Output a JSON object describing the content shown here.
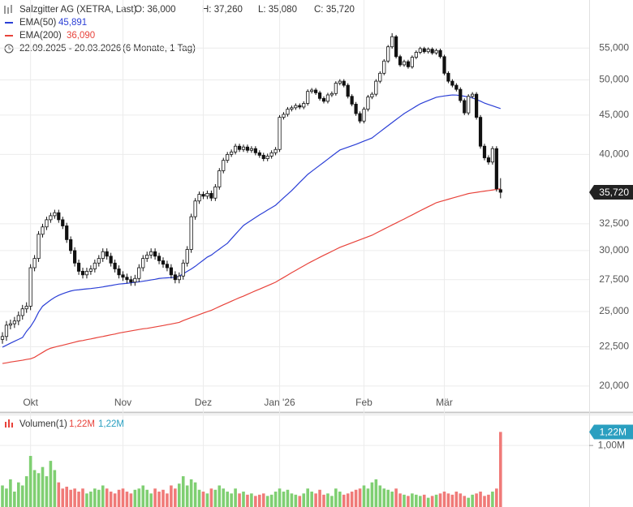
{
  "chart_data": {
    "type": "candlestick",
    "title": "Salzgitter AG (XETRA, Last)",
    "ohlc_labels": [
      "O: 36,000",
      "H: 37,260",
      "L: 35,080",
      "C: 35,720"
    ],
    "date_range": "22.09.2025 - 20.03.2026",
    "period": "(6 Monate, 1 Tag)",
    "categories": [
      null,
      null,
      null,
      null,
      null,
      null,
      null,
      "Okt",
      null,
      null,
      null,
      null,
      null,
      null,
      null,
      null,
      null,
      null,
      null,
      null,
      null,
      null,
      null,
      null,
      null,
      null,
      null,
      null,
      null,
      null,
      "Nov",
      null,
      null,
      null,
      null,
      null,
      null,
      null,
      null,
      null,
      null,
      null,
      null,
      null,
      null,
      null,
      null,
      null,
      null,
      null,
      "Dez",
      null,
      null,
      null,
      null,
      null,
      null,
      null,
      null,
      null,
      null,
      null,
      null,
      null,
      null,
      null,
      null,
      null,
      null,
      "Jan '26",
      null,
      null,
      null,
      null,
      null,
      null,
      null,
      null,
      null,
      null,
      null,
      null,
      null,
      null,
      null,
      null,
      null,
      null,
      null,
      null,
      "Feb",
      null,
      null,
      null,
      null,
      null,
      null,
      null,
      null,
      null,
      null,
      null,
      null,
      null,
      null,
      null,
      null,
      null,
      null,
      null,
      "Mär",
      null,
      null,
      null,
      null,
      null,
      null,
      null,
      null,
      null,
      null,
      null,
      null,
      null,
      null
    ],
    "open": [
      23000,
      23200,
      24000,
      24100,
      24300,
      24700,
      25200,
      25400,
      28500,
      29300,
      31500,
      32200,
      32900,
      33300,
      33600,
      32900,
      32300,
      31000,
      30000,
      28900,
      28200,
      27900,
      28200,
      28400,
      28900,
      29300,
      29900,
      29500,
      28900,
      28400,
      27900,
      27700,
      27500,
      27300,
      27600,
      28500,
      29300,
      29600,
      29900,
      29500,
      29100,
      28800,
      28500,
      27900,
      27500,
      27800,
      28900,
      30100,
      33200,
      34800,
      35500,
      35300,
      35600,
      35100,
      36300,
      38100,
      39300,
      40000,
      40300,
      41000,
      40600,
      40900,
      40500,
      40700,
      40200,
      39900,
      39500,
      39800,
      40200,
      40600,
      44700,
      45100,
      45800,
      46000,
      46300,
      46100,
      46600,
      48300,
      48500,
      48100,
      47300,
      46900,
      47800,
      48000,
      49500,
      49800,
      49200,
      47600,
      46500,
      45200,
      44200,
      45800,
      47500,
      47900,
      49800,
      51000,
      52900,
      55200,
      56900,
      53600,
      52300,
      52800,
      52000,
      53500,
      54300,
      54900,
      54400,
      54800,
      54200,
      54600,
      53600,
      51000,
      49800,
      49200,
      48600,
      47000,
      45300,
      47600,
      47900,
      44700,
      41000,
      39600,
      39100,
      40700,
      36000
    ],
    "high": [
      23500,
      24300,
      24400,
      24600,
      25000,
      25500,
      25700,
      28800,
      29600,
      31800,
      32500,
      33200,
      33600,
      33900,
      33900,
      33200,
      32600,
      31300,
      30300,
      29200,
      28500,
      28500,
      28700,
      29200,
      29600,
      30200,
      30200,
      29800,
      29200,
      28700,
      28200,
      28000,
      27800,
      27900,
      28800,
      29600,
      29900,
      30200,
      30200,
      29800,
      29400,
      29100,
      28800,
      28200,
      28100,
      29200,
      30400,
      33500,
      35100,
      35800,
      35800,
      35900,
      35900,
      36600,
      38400,
      39600,
      40300,
      40600,
      41300,
      41300,
      41200,
      41200,
      41000,
      41000,
      40500,
      40200,
      40100,
      40500,
      40900,
      45000,
      45400,
      46100,
      46300,
      46600,
      46600,
      46900,
      48600,
      48800,
      48800,
      48400,
      47600,
      48100,
      48300,
      49800,
      50100,
      50100,
      49500,
      47900,
      46800,
      45500,
      46100,
      47800,
      48200,
      50100,
      51300,
      53200,
      55500,
      57500,
      57200,
      53900,
      53100,
      53100,
      53800,
      54600,
      55200,
      55200,
      55100,
      55100,
      54900,
      54900,
      53900,
      51300,
      50100,
      49500,
      48900,
      47300,
      47900,
      48200,
      48200,
      45000,
      41300,
      39900,
      41000,
      41000,
      37260
    ],
    "low": [
      22700,
      22900,
      23700,
      23800,
      24000,
      24400,
      24900,
      25100,
      28200,
      29000,
      31200,
      31900,
      32600,
      33000,
      32600,
      32000,
      30700,
      29700,
      28600,
      27900,
      27600,
      27600,
      27900,
      28100,
      28600,
      29000,
      29200,
      28600,
      28100,
      27600,
      27400,
      27200,
      27000,
      27000,
      27300,
      28200,
      29000,
      29300,
      29200,
      28800,
      28500,
      28200,
      27600,
      27200,
      27200,
      27500,
      28600,
      29800,
      32900,
      34500,
      35000,
      35000,
      34800,
      34800,
      36000,
      37800,
      39000,
      39700,
      40000,
      40300,
      40300,
      40200,
      40200,
      39900,
      39600,
      39200,
      39200,
      39500,
      39900,
      40300,
      44400,
      44800,
      45500,
      45700,
      45800,
      45800,
      46300,
      48000,
      47800,
      47000,
      46600,
      46600,
      47500,
      47700,
      49200,
      48900,
      47300,
      46200,
      44900,
      43900,
      43900,
      45500,
      47200,
      47600,
      49500,
      50700,
      52600,
      54900,
      53300,
      52000,
      52000,
      51700,
      51700,
      53200,
      54000,
      54100,
      54100,
      53900,
      53900,
      53300,
      50700,
      49500,
      48900,
      48300,
      46700,
      45000,
      45000,
      47300,
      44400,
      40700,
      39300,
      38800,
      38800,
      35800,
      35080
    ],
    "close": [
      23200,
      24000,
      24100,
      24300,
      24700,
      25200,
      25400,
      28500,
      29300,
      31500,
      32200,
      32900,
      33300,
      33600,
      32900,
      32300,
      31000,
      30000,
      28900,
      28200,
      27900,
      28200,
      28400,
      28900,
      29300,
      29900,
      29500,
      28900,
      28400,
      27900,
      27700,
      27500,
      27300,
      27600,
      28500,
      29300,
      29600,
      29900,
      29500,
      29100,
      28800,
      28500,
      27900,
      27500,
      27800,
      28900,
      30100,
      33200,
      34800,
      35500,
      35300,
      35600,
      35100,
      36300,
      38100,
      39300,
      40000,
      40300,
      41000,
      40600,
      40900,
      40500,
      40700,
      40200,
      39900,
      39500,
      39800,
      40200,
      40600,
      44700,
      45100,
      45800,
      46000,
      46300,
      46100,
      46600,
      48300,
      48500,
      48100,
      47300,
      46900,
      47800,
      48000,
      49500,
      49800,
      49200,
      47600,
      46500,
      45200,
      44200,
      45800,
      47500,
      47900,
      49800,
      51000,
      52900,
      55200,
      56900,
      53600,
      52300,
      52800,
      52000,
      53500,
      54300,
      54900,
      54400,
      54800,
      54200,
      54600,
      53600,
      51000,
      49800,
      49200,
      48600,
      47000,
      45300,
      47600,
      47900,
      44700,
      41000,
      39600,
      39100,
      40700,
      36100,
      35720
    ],
    "up_color": "#ffffff",
    "down_color": "#111111",
    "wick_color": "#111111",
    "last_label": "35,720",
    "last_label_color": "#222222",
    "series": [
      {
        "name": "EMA(50)",
        "value_label": "45,891",
        "color": "#2b3fd6",
        "values": [
          22470,
          22600,
          22740,
          22870,
          23000,
          23130,
          23560,
          23900,
          24360,
          24950,
          25400,
          25640,
          25870,
          26080,
          26240,
          26370,
          26480,
          26580,
          26650,
          26680,
          26720,
          26750,
          26780,
          26820,
          26860,
          26910,
          26970,
          27020,
          27080,
          27140,
          27170,
          27200,
          27240,
          27280,
          27320,
          27370,
          27420,
          27480,
          27530,
          27600,
          27630,
          27650,
          27670,
          27690,
          27790,
          27990,
          28190,
          28390,
          28620,
          28890,
          29150,
          29420,
          29600,
          29870,
          30130,
          30400,
          30660,
          31080,
          31500,
          31920,
          32340,
          32600,
          32860,
          33120,
          33380,
          33620,
          33870,
          34110,
          34360,
          34740,
          35130,
          35510,
          35900,
          36340,
          36790,
          37230,
          37680,
          38030,
          38380,
          38730,
          39080,
          39440,
          39810,
          40170,
          40530,
          40700,
          40880,
          41050,
          41230,
          41430,
          41630,
          41820,
          42020,
          42420,
          42810,
          43210,
          43600,
          44000,
          44400,
          44800,
          45200,
          45540,
          45870,
          46210,
          46540,
          46770,
          47000,
          47230,
          47460,
          47560,
          47650,
          47730,
          47790,
          47780,
          47700,
          47610,
          47500,
          47380,
          47150,
          46920,
          46640,
          46450,
          46260,
          46070,
          45891
        ]
      },
      {
        "name": "EMA(200)",
        "value_label": "36,090",
        "color": "#e8433b",
        "values": [
          21400,
          21440,
          21490,
          21530,
          21570,
          21610,
          21660,
          21700,
          21800,
          21960,
          22120,
          22280,
          22400,
          22470,
          22540,
          22600,
          22670,
          22740,
          22810,
          22880,
          22920,
          22980,
          23030,
          23090,
          23150,
          23200,
          23260,
          23320,
          23370,
          23440,
          23490,
          23540,
          23590,
          23640,
          23690,
          23740,
          23770,
          23820,
          23870,
          23920,
          23970,
          24030,
          24080,
          24140,
          24200,
          24330,
          24440,
          24550,
          24660,
          24770,
          24880,
          24990,
          25090,
          25230,
          25370,
          25510,
          25640,
          25780,
          25920,
          26060,
          26180,
          26320,
          26460,
          26600,
          26730,
          26870,
          27010,
          27150,
          27290,
          27490,
          27680,
          27880,
          28080,
          28270,
          28470,
          28660,
          28860,
          29040,
          29220,
          29400,
          29580,
          29750,
          29930,
          30110,
          30290,
          30430,
          30570,
          30710,
          30850,
          30990,
          31130,
          31270,
          31410,
          31610,
          31800,
          32000,
          32190,
          32390,
          32580,
          32780,
          32970,
          33180,
          33380,
          33590,
          33800,
          34000,
          34210,
          34410,
          34620,
          34740,
          34860,
          34980,
          35100,
          35220,
          35340,
          35460,
          35580,
          35650,
          35710,
          35780,
          35840,
          35900,
          35960,
          36030,
          36090
        ]
      }
    ],
    "ylim": [
      19900,
      63500
    ],
    "log_scale": true,
    "grid": true,
    "yticks": [
      {
        "value": 20000,
        "label": "20,000"
      },
      {
        "value": 22500,
        "label": "22,500"
      },
      {
        "value": 25000,
        "label": "25,000"
      },
      {
        "value": 27500,
        "label": "27,500"
      },
      {
        "value": 30000,
        "label": "30,000"
      },
      {
        "value": 32500,
        "label": "32,500"
      },
      {
        "value": 40000,
        "label": "40,000"
      },
      {
        "value": 45000,
        "label": "45,000"
      },
      {
        "value": 50000,
        "label": "50,000"
      },
      {
        "value": 55000,
        "label": "55,000"
      }
    ],
    "volume": {
      "name": "Volumen(1)",
      "labels": [
        "1,22M",
        "1,22M"
      ],
      "label_colors": [
        "#e8433b",
        "#2a9fc0"
      ],
      "badge": "1,22M",
      "badge_color": "#2a9fc0",
      "up_color": "#7fcf72",
      "down_color": "#f07a78",
      "ylim": [
        0,
        1.45
      ],
      "yticks": [
        {
          "value": 1,
          "label": "1,00M"
        }
      ],
      "values": [
        0.35,
        0.3,
        0.45,
        0.25,
        0.4,
        0.35,
        0.5,
        0.83,
        0.6,
        0.55,
        0.65,
        0.5,
        0.75,
        0.6,
        0.4,
        0.3,
        0.33,
        0.28,
        0.3,
        0.25,
        0.3,
        0.22,
        0.25,
        0.3,
        0.28,
        0.35,
        0.3,
        0.25,
        0.22,
        0.28,
        0.3,
        0.25,
        0.22,
        0.28,
        0.3,
        0.35,
        0.28,
        0.22,
        0.3,
        0.25,
        0.28,
        0.22,
        0.35,
        0.3,
        0.38,
        0.5,
        0.35,
        0.45,
        0.4,
        0.28,
        0.25,
        0.22,
        0.3,
        0.28,
        0.35,
        0.3,
        0.25,
        0.22,
        0.3,
        0.22,
        0.25,
        0.2,
        0.22,
        0.18,
        0.2,
        0.22,
        0.18,
        0.2,
        0.25,
        0.3,
        0.25,
        0.28,
        0.22,
        0.2,
        0.18,
        0.22,
        0.3,
        0.25,
        0.22,
        0.28,
        0.2,
        0.22,
        0.18,
        0.3,
        0.25,
        0.2,
        0.22,
        0.25,
        0.28,
        0.3,
        0.35,
        0.3,
        0.4,
        0.45,
        0.35,
        0.3,
        0.28,
        0.25,
        0.3,
        0.22,
        0.2,
        0.18,
        0.22,
        0.2,
        0.18,
        0.2,
        0.15,
        0.18,
        0.2,
        0.22,
        0.25,
        0.22,
        0.2,
        0.25,
        0.22,
        0.18,
        0.15,
        0.2,
        0.22,
        0.25,
        0.18,
        0.2,
        0.25,
        0.3,
        1.22
      ]
    }
  }
}
